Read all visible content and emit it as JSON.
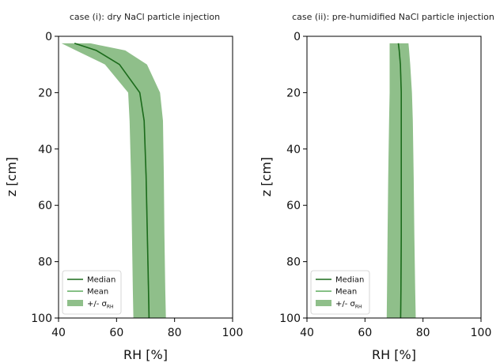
{
  "chart_data": [
    {
      "type": "area",
      "title": "case (i): dry NaCl particle injection",
      "xlabel": "RH [%]",
      "ylabel": "z [cm]",
      "xlim": [
        40,
        100
      ],
      "ylim": [
        0,
        100
      ],
      "y_inverted": true,
      "xticks": [
        "40",
        "60",
        "80",
        "100"
      ],
      "yticks": [
        "0",
        "20",
        "40",
        "60",
        "80",
        "100"
      ],
      "legend": {
        "placement": "lower-left",
        "entries": [
          "Median",
          "Mean",
          "+/- σ"
        ],
        "sigma_subscript": "RH"
      },
      "z": [
        2.5,
        5,
        10,
        20,
        30,
        50,
        70,
        90,
        100
      ],
      "series": [
        {
          "name": "Median",
          "values": [
            45.5,
            53,
            61,
            68,
            69.5,
            70.2,
            70.6,
            71,
            71.2
          ]
        },
        {
          "name": "Mean",
          "values": [
            45.5,
            53,
            61,
            68,
            69.5,
            70.2,
            70.6,
            71,
            71.2
          ]
        },
        {
          "name": "+/- σ",
          "lower": [
            41,
            46,
            56,
            64,
            64.5,
            65,
            65.3,
            65.6,
            65.8
          ],
          "upper": [
            51,
            63,
            70.5,
            75,
            76,
            76.3,
            76.5,
            76.8,
            77
          ]
        }
      ]
    },
    {
      "type": "area",
      "title": "case (ii): pre-humidified NaCl particle injection",
      "xlabel": "RH [%]",
      "ylabel": "z [cm]",
      "xlim": [
        40,
        100
      ],
      "ylim": [
        0,
        100
      ],
      "y_inverted": true,
      "xticks": [
        "40",
        "60",
        "80",
        "100"
      ],
      "yticks": [
        "0",
        "20",
        "40",
        "60",
        "80",
        "100"
      ],
      "legend": {
        "placement": "lower-left",
        "entries": [
          "Median",
          "Mean",
          "+/- σ"
        ],
        "sigma_subscript": "RH"
      },
      "z": [
        2.5,
        5,
        10,
        20,
        30,
        50,
        70,
        90,
        100
      ],
      "series": [
        {
          "name": "Median",
          "values": [
            71.5,
            71.8,
            72.2,
            72.5,
            72.5,
            72.5,
            72.5,
            72.4,
            72.3
          ]
        },
        {
          "name": "Mean",
          "values": [
            71.5,
            71.8,
            72.2,
            72.5,
            72.5,
            72.5,
            72.5,
            72.4,
            72.3
          ]
        },
        {
          "name": "+/- σ",
          "lower": [
            68.5,
            68.5,
            68.5,
            68.5,
            68.3,
            68,
            67.8,
            67.6,
            67.5
          ],
          "upper": [
            75,
            75.2,
            75.6,
            76.2,
            76.5,
            76.8,
            77,
            77.3,
            77.5
          ]
        }
      ]
    }
  ]
}
